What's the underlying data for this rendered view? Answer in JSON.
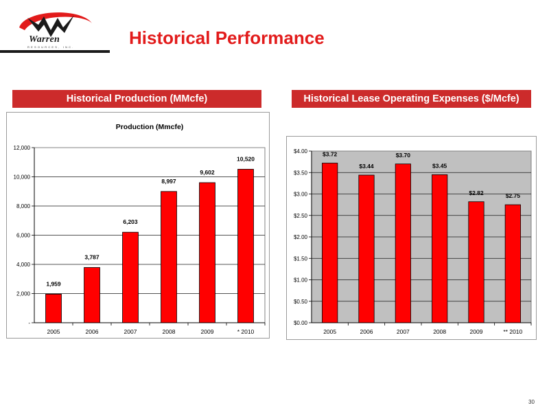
{
  "header": {
    "title": "Historical Performance",
    "logo_text": "Warren",
    "logo_subtext": "RESOURCES, INC."
  },
  "colors": {
    "accent": "#e21b1b",
    "header_bg": "#cc2b2b",
    "bar": "#ff0000",
    "plot_bg": "#c0c0c0"
  },
  "panels": {
    "left_header": "Historical Production (MMcfe)",
    "right_header": "Historical Lease Operating Expenses ($/Mcfe)"
  },
  "chart_data": [
    {
      "type": "bar",
      "title": "Production (Mmcfe)",
      "categories": [
        "2005",
        "2006",
        "2007",
        "2008",
        "2009",
        "* 2010"
      ],
      "values": [
        1959,
        3787,
        6203,
        8997,
        9602,
        10520
      ],
      "value_labels": [
        "1,959",
        "3,787",
        "6,203",
        "8,997",
        "9,602",
        "10,520"
      ],
      "ylim": [
        0,
        12000
      ],
      "yticks": [
        0,
        2000,
        4000,
        6000,
        8000,
        10000,
        12000
      ],
      "ytick_labels": [
        "-",
        "2,000",
        "4,000",
        "6,000",
        "8,000",
        "10,000",
        "12,000"
      ],
      "grid": true,
      "plot_background": "#ffffff"
    },
    {
      "type": "bar",
      "title": "",
      "categories": [
        "2005",
        "2006",
        "2007",
        "2008",
        "2009",
        "** 2010"
      ],
      "values": [
        3.72,
        3.44,
        3.7,
        3.45,
        2.82,
        2.75
      ],
      "value_labels": [
        "$3.72",
        "$3.44",
        "$3.70",
        "$3.45",
        "$2.82",
        "$2.75"
      ],
      "ylim": [
        0,
        4
      ],
      "yticks": [
        0,
        0.5,
        1,
        1.5,
        2,
        2.5,
        3,
        3.5,
        4
      ],
      "ytick_labels": [
        "$0.00",
        "$0.50",
        "$1.00",
        "$1.50",
        "$2.00",
        "$2.50",
        "$3.00",
        "$3.50",
        "$4.00"
      ],
      "grid": true,
      "plot_background": "#c0c0c0"
    }
  ],
  "footer": {
    "page_number": "30"
  }
}
